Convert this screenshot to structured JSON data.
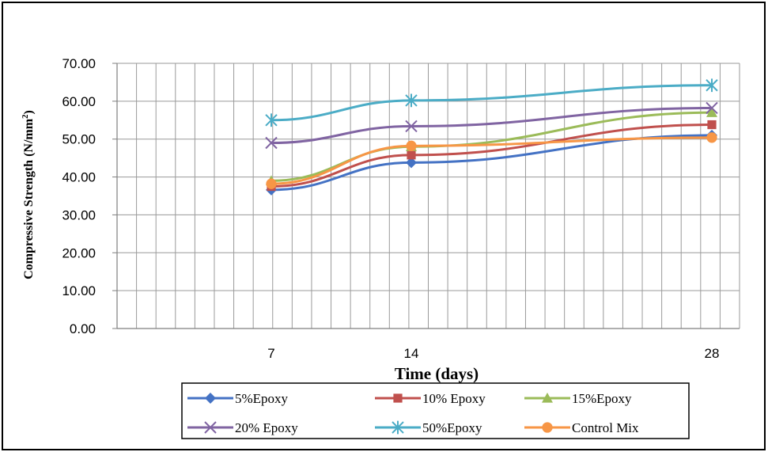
{
  "chart_data": {
    "type": "line",
    "title": "",
    "xlabel": "Time (days)",
    "ylabel": "Compressive Strength (N/mm²)",
    "ylabel_parts": {
      "main": "Compressive Strength (N/mm",
      "sup": "2",
      "close": ")"
    },
    "x": [
      "7",
      "14",
      "28"
    ],
    "ylim": [
      0,
      70
    ],
    "yticks": [
      "0.00",
      "10.00",
      "20.00",
      "30.00",
      "40.00",
      "50.00",
      "60.00",
      "70.00"
    ],
    "grid": true,
    "legend_position": "bottom",
    "series": [
      {
        "name": "5%Epoxy",
        "values": [
          36.6,
          43.8,
          51.0
        ],
        "color": "#4472C4",
        "marker": "diamond"
      },
      {
        "name": "10% Epoxy",
        "values": [
          37.5,
          45.8,
          53.8
        ],
        "color": "#C0504D",
        "marker": "square"
      },
      {
        "name": "15%Epoxy",
        "values": [
          39.0,
          48.0,
          57.0
        ],
        "color": "#9BBB59",
        "marker": "triangle"
      },
      {
        "name": "20% Epoxy",
        "values": [
          49.0,
          53.4,
          58.2
        ],
        "color": "#8064A2",
        "marker": "x"
      },
      {
        "name": "50%Epoxy",
        "values": [
          55.0,
          60.2,
          64.2
        ],
        "color": "#4BACC6",
        "marker": "star"
      },
      {
        "name": "Control Mix",
        "values": [
          38.2,
          48.2,
          50.4
        ],
        "color": "#F79646",
        "marker": "circle"
      }
    ]
  }
}
